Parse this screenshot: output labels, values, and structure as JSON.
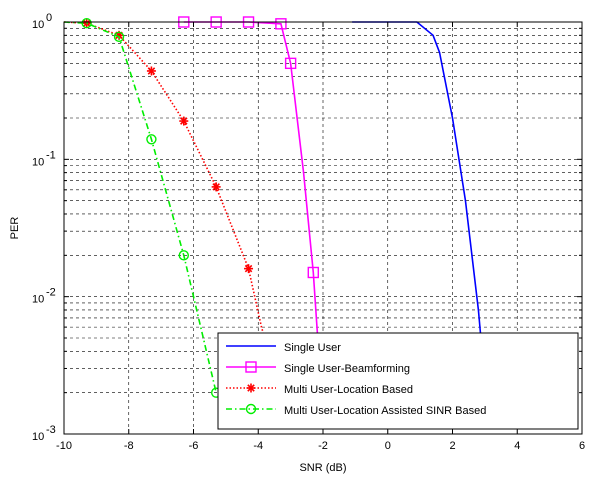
{
  "chart_data": {
    "type": "line",
    "xlabel": "SNR (dB)",
    "ylabel": "PER",
    "xlim": [
      -10,
      6
    ],
    "ylim": [
      0.001,
      1
    ],
    "yscale": "log",
    "grid": true,
    "grid_style": "dashed",
    "legend_position": "bottom-right",
    "x_ticks": [
      -10,
      -8,
      -6,
      -4,
      -2,
      0,
      2,
      4,
      6
    ],
    "x_tick_labels": [
      "-10",
      "-8",
      "-6",
      "-4",
      "-2",
      "0",
      "2",
      "4",
      "6"
    ],
    "y_ticks": [
      0.001,
      0.01,
      0.1,
      1
    ],
    "y_tick_labels": [
      {
        "base": "10",
        "exp": "-3"
      },
      {
        "base": "10",
        "exp": "-2"
      },
      {
        "base": "10",
        "exp": "-1"
      },
      {
        "base": "10",
        "exp": "0"
      }
    ],
    "series": [
      {
        "name": "Single User",
        "color": "#0000ff",
        "line_style": "solid",
        "marker": "none",
        "x": [
          -1.1,
          0.9,
          1.4,
          1.6,
          2.0,
          2.4,
          2.8,
          2.95
        ],
        "y": [
          1.0,
          1.0,
          0.8,
          0.6,
          0.2,
          0.05,
          0.008,
          0.0032
        ]
      },
      {
        "name": "Single User-Beamforming",
        "color": "#ff00ff",
        "line_style": "solid",
        "marker": "square",
        "x": [
          -6.3,
          -5.3,
          -4.3,
          -3.3,
          -3.0,
          -2.6,
          -2.3,
          -2.1
        ],
        "y": [
          1.0,
          1.0,
          1.0,
          0.97,
          0.5,
          0.08,
          0.015,
          0.003
        ],
        "marker_x": [
          -6.3,
          -5.3,
          -4.3,
          -3.3,
          -3.0,
          -2.3
        ],
        "marker_y": [
          1.0,
          1.0,
          1.0,
          0.97,
          0.5,
          0.015
        ]
      },
      {
        "name": "Multi User-Location Based",
        "color": "#ff0000",
        "line_style": "dotted",
        "marker": "star",
        "x": [
          -10,
          -9.3,
          -8.3,
          -7.3,
          -6.3,
          -5.3,
          -4.3,
          -3.9,
          -3.8
        ],
        "y": [
          1.0,
          0.98,
          0.8,
          0.44,
          0.19,
          0.063,
          0.016,
          0.006,
          0.005
        ],
        "marker_x": [
          -9.3,
          -8.3,
          -7.3,
          -6.3,
          -5.3,
          -4.3
        ],
        "marker_y": [
          0.98,
          0.8,
          0.44,
          0.19,
          0.063,
          0.016
        ]
      },
      {
        "name": "Multi User-Location Assisted SINR Based",
        "color": "#00ee00",
        "line_style": "dashdot",
        "marker": "circle",
        "x": [
          -10,
          -9.3,
          -8.3,
          -7.3,
          -6.3,
          -5.3
        ],
        "y": [
          1.0,
          0.98,
          0.78,
          0.14,
          0.02,
          0.002
        ],
        "marker_x": [
          -9.3,
          -8.3,
          -7.3,
          -6.3,
          -5.3
        ],
        "marker_y": [
          0.98,
          0.78,
          0.14,
          0.02,
          0.002
        ]
      }
    ]
  }
}
